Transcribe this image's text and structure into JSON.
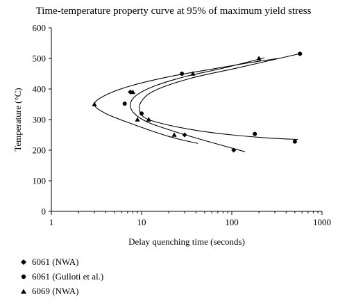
{
  "chart_data": {
    "type": "scatter",
    "title": "Time-temperature property curve at 95% of maximum yield stress",
    "xlabel": "Delay quenching time (seconds)",
    "ylabel": "Temperature (°C)",
    "xscale": "log",
    "xlim": [
      1,
      1000
    ],
    "ylim": [
      0,
      600
    ],
    "x_ticks": [
      "1",
      "10",
      "100",
      "1000"
    ],
    "y_ticks": [
      "0",
      "100",
      "200",
      "300",
      "400",
      "500",
      "600"
    ],
    "legend_position": "bottom-left",
    "series": [
      {
        "name": "6061 (NWA)",
        "marker": "diamond",
        "points": [
          [
            7.5,
            390
          ],
          [
            30,
            250
          ],
          [
            105,
            200
          ]
        ],
        "curve": [
          [
            140,
            195
          ],
          [
            60,
            225
          ],
          [
            25,
            258
          ],
          [
            12,
            290
          ],
          [
            8.3,
            320
          ],
          [
            7.5,
            350
          ],
          [
            8.8,
            380
          ],
          [
            14,
            410
          ],
          [
            30,
            440
          ],
          [
            80,
            468
          ],
          [
            230,
            502
          ]
        ]
      },
      {
        "name": "6061 (Gulloti et al.)",
        "marker": "circle",
        "points": [
          [
            6.5,
            352
          ],
          [
            10,
            320
          ],
          [
            28,
            450
          ],
          [
            180,
            253
          ],
          [
            500,
            228
          ],
          [
            570,
            515
          ]
        ],
        "curve": [
          [
            540,
            235
          ],
          [
            250,
            240
          ],
          [
            100,
            250
          ],
          [
            40,
            265
          ],
          [
            18,
            285
          ],
          [
            11,
            305
          ],
          [
            9.5,
            330
          ],
          [
            10,
            360
          ],
          [
            14,
            395
          ],
          [
            35,
            435
          ],
          [
            120,
            470
          ],
          [
            560,
            515
          ]
        ]
      },
      {
        "name": "6069 (NWA)",
        "marker": "triangle",
        "points": [
          [
            3,
            350
          ],
          [
            8,
            390
          ],
          [
            9,
            300
          ],
          [
            12,
            300
          ],
          [
            23,
            250
          ],
          [
            37,
            450
          ],
          [
            200,
            500
          ]
        ],
        "curve": [
          [
            42,
            222
          ],
          [
            20,
            245
          ],
          [
            8,
            285
          ],
          [
            4,
            320
          ],
          [
            3,
            350
          ],
          [
            4,
            380
          ],
          [
            7.5,
            410
          ],
          [
            20,
            440
          ],
          [
            60,
            465
          ],
          [
            150,
            485
          ],
          [
            330,
            500
          ]
        ]
      }
    ]
  }
}
